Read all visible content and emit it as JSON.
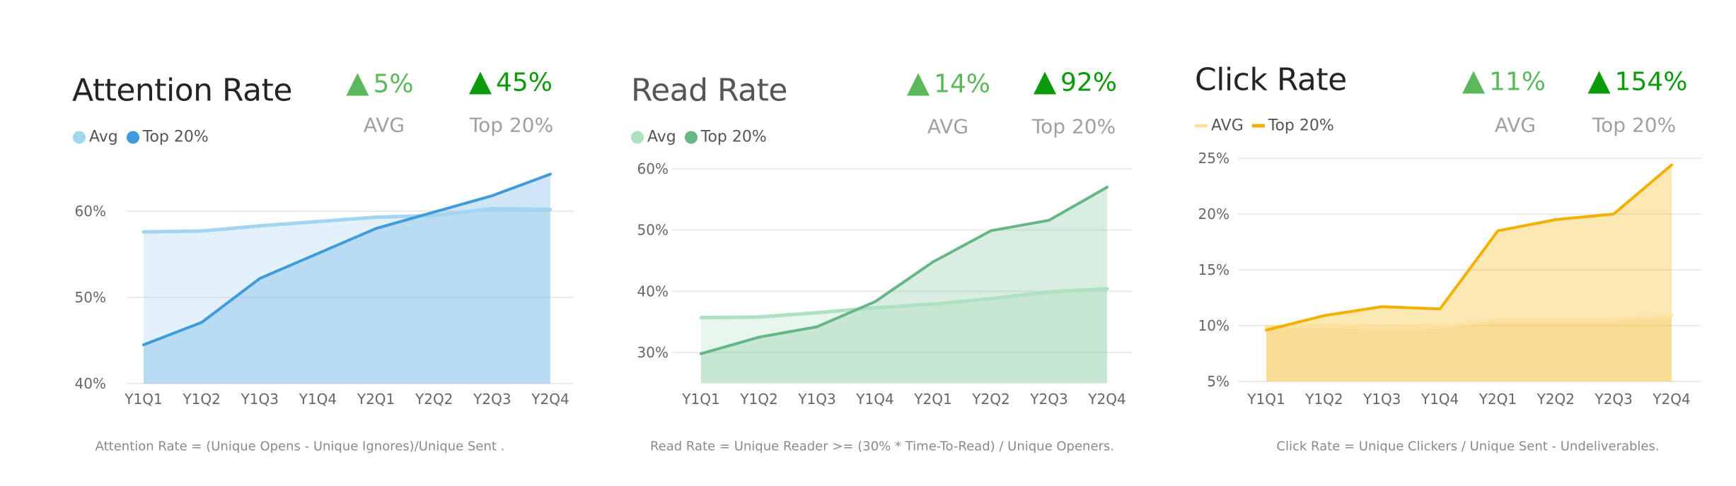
{
  "panels": [
    {
      "title": "Attention Rate",
      "kpis": [
        {
          "value": "5%",
          "label": "AVG",
          "color": "#5cb85c",
          "direction": "up"
        },
        {
          "value": "45%",
          "label": "Top 20%",
          "color": "#0a9a0a",
          "direction": "up"
        }
      ],
      "legend": [
        {
          "label": "Avg",
          "marker": "circle"
        },
        {
          "label": "Top 20%",
          "marker": "circle"
        }
      ],
      "caption": "Attention Rate = (Unique Opens - Unique Ignores)/Unique Sent ."
    },
    {
      "title": "Read Rate",
      "kpis": [
        {
          "value": "14%",
          "label": "AVG",
          "color": "#5cb85c",
          "direction": "up"
        },
        {
          "value": "92%",
          "label": "Top 20%",
          "color": "#0a9a0a",
          "direction": "up"
        }
      ],
      "legend": [
        {
          "label": "Avg",
          "marker": "circle"
        },
        {
          "label": "Top 20%",
          "marker": "circle"
        }
      ],
      "caption": "Read Rate = Unique Reader >= (30% * Time-To-Read) / Unique Openers."
    },
    {
      "title": "Click Rate",
      "kpis": [
        {
          "value": "11%",
          "label": "AVG",
          "color": "#5cb85c",
          "direction": "up"
        },
        {
          "value": "154%",
          "label": "Top 20%",
          "color": "#0a9a0a",
          "direction": "up"
        }
      ],
      "legend": [
        {
          "label": "AVG",
          "marker": "line"
        },
        {
          "label": "Top 20%",
          "marker": "line"
        }
      ],
      "caption": "Click Rate = Unique Clickers  / Unique Sent - Undeliverables."
    }
  ],
  "chart_data": [
    {
      "type": "area",
      "title": "Attention Rate",
      "categories": [
        "Y1Q1",
        "Y1Q2",
        "Y1Q3",
        "Y1Q4",
        "Y2Q1",
        "Y2Q2",
        "Y2Q3",
        "Y2Q4"
      ],
      "ylim": [
        40,
        65
      ],
      "yticks": [
        40,
        50,
        60
      ],
      "ytick_labels": [
        "40%",
        "50%",
        "60%"
      ],
      "grid": true,
      "legend": "top-left",
      "series": [
        {
          "name": "Avg",
          "color": "#a3d4f0",
          "values": [
            57.6,
            57.7,
            58.3,
            58.8,
            59.3,
            59.5,
            60.3,
            60.2
          ]
        },
        {
          "name": "Top 20%",
          "color": "#3f9bdc",
          "values": [
            44.5,
            47.1,
            52.2,
            55.1,
            58.0,
            59.9,
            61.8,
            64.3
          ]
        }
      ]
    },
    {
      "type": "area",
      "title": "Read Rate",
      "categories": [
        "Y1Q1",
        "Y1Q2",
        "Y1Q3",
        "Y1Q4",
        "Y2Q1",
        "Y2Q2",
        "Y2Q3",
        "Y2Q4"
      ],
      "ylim": [
        25,
        60
      ],
      "yticks": [
        30,
        40,
        50,
        60
      ],
      "ytick_labels": [
        "30%",
        "40%",
        "50%",
        "60%"
      ],
      "grid": true,
      "legend": "top-left",
      "series": [
        {
          "name": "Avg",
          "color": "#aee0c1",
          "values": [
            35.7,
            35.8,
            36.5,
            37.3,
            37.9,
            38.8,
            39.9,
            40.4
          ]
        },
        {
          "name": "Top 20%",
          "color": "#66b687",
          "values": [
            29.8,
            32.5,
            34.2,
            38.3,
            44.8,
            49.9,
            51.6,
            57.0
          ]
        }
      ]
    },
    {
      "type": "area",
      "title": "Click Rate",
      "categories": [
        "Y1Q1",
        "Y1Q2",
        "Y1Q3",
        "Y1Q4",
        "Y2Q1",
        "Y2Q2",
        "Y2Q3",
        "Y2Q4"
      ],
      "ylim": [
        5,
        25
      ],
      "yticks": [
        5,
        10,
        15,
        20,
        25
      ],
      "ytick_labels": [
        "5%",
        "10%",
        "15%",
        "20%",
        "25%"
      ],
      "grid": true,
      "legend": "top-left",
      "series": [
        {
          "name": "AVG",
          "color": "#fde1a0",
          "values": [
            9.9,
            10.0,
            9.8,
            9.9,
            10.5,
            10.5,
            10.5,
            10.9
          ]
        },
        {
          "name": "Top 20%",
          "color": "#f2b000",
          "values": [
            9.6,
            10.9,
            11.7,
            11.5,
            18.5,
            19.5,
            20.0,
            24.4
          ]
        }
      ]
    }
  ]
}
